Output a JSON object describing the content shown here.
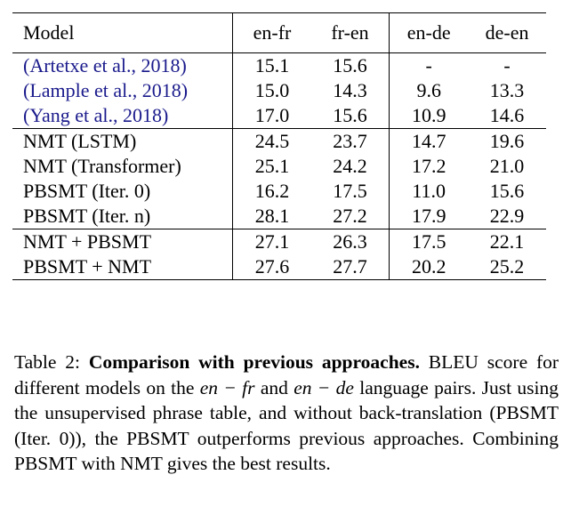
{
  "table": {
    "headers": [
      "Model",
      "en-fr",
      "fr-en",
      "en-de",
      "de-en"
    ],
    "groups": [
      [
        {
          "model": "(Artetxe et al., 2018)",
          "values": [
            "15.1",
            "15.6",
            "-",
            "-"
          ],
          "bold": [
            false,
            false,
            false,
            false
          ],
          "cite": true
        },
        {
          "model": "(Lample et al., 2018)",
          "values": [
            "15.0",
            "14.3",
            "9.6",
            "13.3"
          ],
          "bold": [
            false,
            false,
            false,
            false
          ],
          "cite": true
        },
        {
          "model": "(Yang et al., 2018)",
          "values": [
            "17.0",
            "15.6",
            "10.9",
            "14.6"
          ],
          "bold": [
            false,
            false,
            false,
            false
          ],
          "cite": true
        }
      ],
      [
        {
          "model": "NMT (LSTM)",
          "values": [
            "24.5",
            "23.7",
            "14.7",
            "19.6"
          ],
          "bold": [
            false,
            false,
            false,
            false
          ],
          "cite": false
        },
        {
          "model": "NMT (Transformer)",
          "values": [
            "25.1",
            "24.2",
            "17.2",
            "21.0"
          ],
          "bold": [
            false,
            false,
            false,
            false
          ],
          "cite": false
        },
        {
          "model": "PBSMT (Iter. 0)",
          "values": [
            "16.2",
            "17.5",
            "11.0",
            "15.6"
          ],
          "bold": [
            false,
            false,
            false,
            false
          ],
          "cite": false
        },
        {
          "model": "PBSMT (Iter. n)",
          "values": [
            "28.1",
            "27.2",
            "17.9",
            "22.9"
          ],
          "bold": [
            true,
            false,
            false,
            false
          ],
          "cite": false
        }
      ],
      [
        {
          "model": "NMT + PBSMT",
          "values": [
            "27.1",
            "26.3",
            "17.5",
            "22.1"
          ],
          "bold": [
            false,
            false,
            false,
            false
          ],
          "cite": false
        },
        {
          "model": "PBSMT + NMT",
          "values": [
            "27.6",
            "27.7",
            "20.2",
            "25.2"
          ],
          "bold": [
            false,
            true,
            true,
            true
          ],
          "cite": false
        }
      ]
    ],
    "cite_color": "#1a1a8c"
  },
  "caption": {
    "label": "Table 2:",
    "title": "Comparison with previous approaches.",
    "text1": "BLEU score for different models on the",
    "math1": "en − fr",
    "text2": "and",
    "math2": "en − de",
    "text3": "language pairs. Just using the unsupervised phrase table, and without back-translation (PBSMT (Iter. 0)), the PBSMT outperforms previous approaches. Combining PBSMT with NMT gives the best results."
  }
}
